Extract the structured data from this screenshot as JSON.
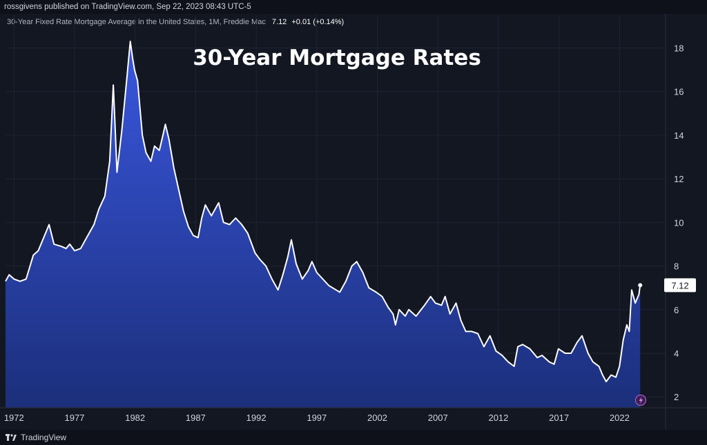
{
  "header": {
    "publish_line": "rossgivens published on TradingView.com, Sep 22, 2023 08:43 UTC-5"
  },
  "legend": {
    "series_title": "30-Year Fixed Rate Mortgage Average in the United States, 1M, Freddie Mac",
    "last_value": "7.12",
    "change": "+0.01 (+0.14%)"
  },
  "footer": {
    "brand": "TradingView",
    "logo_icon": "tradingview-logo-icon",
    "flash_icon": "lightning-icon"
  },
  "colors": {
    "background": "#131722",
    "line": "#ffffff",
    "area_top": "#3a57e0",
    "area_bottom": "#1b2f7a",
    "grid": "#1f2433"
  },
  "chart_data": {
    "type": "area",
    "title": "30-Year Mortgage Rates",
    "price_label": "7.12",
    "x_ticks": [
      "1972",
      "1977",
      "1982",
      "1987",
      "1992",
      "1997",
      "2002",
      "2007",
      "2012",
      "2017",
      "2022"
    ],
    "y_ticks": [
      "18",
      "16",
      "14",
      "12",
      "10",
      "8",
      "6",
      "4",
      "2"
    ],
    "xlim": [
      1971.3,
      2025.8
    ],
    "ylim": [
      1.5,
      19.5
    ],
    "grid": true,
    "series": [
      {
        "x": [
          1971.3,
          1971.6,
          1972.0,
          1972.5,
          1973.0,
          1973.6,
          1974.0,
          1974.6,
          1974.9,
          1975.3,
          1975.9,
          1976.3,
          1976.6,
          1977.0,
          1977.5,
          1978.0,
          1978.6,
          1979.0,
          1979.5,
          1979.9,
          1980.2,
          1980.3,
          1980.5,
          1980.9,
          1981.3,
          1981.6,
          1981.8,
          1981.95,
          1982.2,
          1982.6,
          1982.9,
          1983.3,
          1983.6,
          1984.0,
          1984.3,
          1984.5,
          1984.8,
          1985.2,
          1985.6,
          1986.0,
          1986.4,
          1986.8,
          1987.2,
          1987.5,
          1987.8,
          1988.3,
          1988.9,
          1989.3,
          1989.8,
          1990.3,
          1990.8,
          1991.3,
          1991.9,
          1992.3,
          1992.8,
          1993.3,
          1993.8,
          1994.2,
          1994.6,
          1994.9,
          1995.3,
          1995.8,
          1996.3,
          1996.6,
          1997.0,
          1997.5,
          1998.0,
          1998.6,
          1998.9,
          1999.4,
          1999.9,
          2000.3,
          2000.8,
          2001.3,
          2001.9,
          2002.4,
          2002.9,
          2003.3,
          2003.5,
          2003.8,
          2004.3,
          2004.6,
          2005.2,
          2005.9,
          2006.4,
          2006.8,
          2007.3,
          2007.6,
          2008.0,
          2008.5,
          2008.9,
          2009.3,
          2009.8,
          2010.3,
          2010.8,
          2011.3,
          2011.8,
          2012.3,
          2012.8,
          2013.3,
          2013.6,
          2014.0,
          2014.6,
          2015.2,
          2015.6,
          2016.2,
          2016.6,
          2016.95,
          2017.5,
          2018.0,
          2018.5,
          2018.9,
          2019.4,
          2019.8,
          2020.3,
          2020.6,
          2020.9,
          2021.3,
          2021.7,
          2022.0,
          2022.3,
          2022.6,
          2022.8,
          2023.0,
          2023.3,
          2023.6,
          2023.7
        ],
        "values": [
          7.3,
          7.6,
          7.4,
          7.3,
          7.4,
          8.5,
          8.7,
          9.5,
          9.9,
          9.0,
          8.9,
          8.8,
          9.0,
          8.7,
          8.8,
          9.3,
          9.9,
          10.6,
          11.2,
          12.8,
          16.3,
          15.0,
          12.3,
          14.2,
          16.5,
          18.3,
          17.5,
          17.0,
          16.5,
          14.0,
          13.2,
          12.8,
          13.5,
          13.3,
          14.0,
          14.5,
          13.8,
          12.5,
          11.5,
          10.5,
          9.8,
          9.4,
          9.3,
          10.2,
          10.8,
          10.3,
          10.9,
          10.0,
          9.9,
          10.2,
          9.9,
          9.5,
          8.6,
          8.3,
          8.0,
          7.4,
          6.9,
          7.6,
          8.4,
          9.2,
          8.1,
          7.4,
          7.8,
          8.2,
          7.7,
          7.4,
          7.1,
          6.9,
          6.8,
          7.3,
          8.0,
          8.2,
          7.7,
          7.0,
          6.8,
          6.6,
          6.1,
          5.8,
          5.3,
          6.0,
          5.7,
          6.0,
          5.7,
          6.2,
          6.6,
          6.3,
          6.2,
          6.6,
          5.8,
          6.3,
          5.5,
          5.0,
          5.0,
          4.9,
          4.3,
          4.8,
          4.1,
          3.9,
          3.6,
          3.4,
          4.3,
          4.4,
          4.2,
          3.8,
          3.9,
          3.6,
          3.5,
          4.2,
          4.0,
          4.0,
          4.5,
          4.8,
          4.0,
          3.6,
          3.4,
          3.0,
          2.7,
          3.0,
          2.9,
          3.4,
          4.6,
          5.3,
          5.0,
          6.9,
          6.3,
          6.7,
          7.12
        ],
        "end_label": "7.12"
      }
    ]
  }
}
